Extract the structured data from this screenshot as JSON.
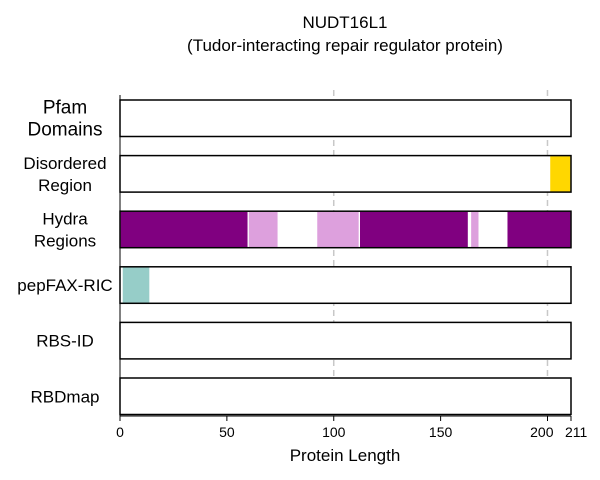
{
  "chart_data": {
    "type": "track",
    "title": "NUDT16L1",
    "subtitle": "(Tudor-interacting repair regulator protein)",
    "xlabel": "Protein Length",
    "xlim": [
      0,
      211
    ],
    "xticks": [
      0,
      50,
      100,
      150,
      200,
      211
    ],
    "grid_lines": [
      100,
      200
    ],
    "tracks": [
      {
        "label": [
          "Pfam",
          "Domains"
        ],
        "segments": []
      },
      {
        "label": [
          "Disordered",
          "Region"
        ],
        "segments": [
          {
            "start": 201,
            "end": 211,
            "color": "#FFD700"
          }
        ]
      },
      {
        "label": [
          "Hydra",
          "Regions"
        ],
        "segments": [
          {
            "start": 0,
            "end": 60,
            "color": "#800080"
          },
          {
            "start": 60,
            "end": 74,
            "color": "#DDA0DD"
          },
          {
            "start": 92,
            "end": 112,
            "color": "#DDA0DD"
          },
          {
            "start": 112,
            "end": 163,
            "color": "#800080"
          },
          {
            "start": 164,
            "end": 168,
            "color": "#DDA0DD"
          },
          {
            "start": 181,
            "end": 211,
            "color": "#800080"
          }
        ]
      },
      {
        "label": [
          "pepFAX-RIC"
        ],
        "segments": [
          {
            "start": 1,
            "end": 14,
            "color": "#96CDC8"
          }
        ]
      },
      {
        "label": [
          "RBS-ID"
        ],
        "segments": []
      },
      {
        "label": [
          "RBDmap"
        ],
        "segments": []
      }
    ]
  }
}
